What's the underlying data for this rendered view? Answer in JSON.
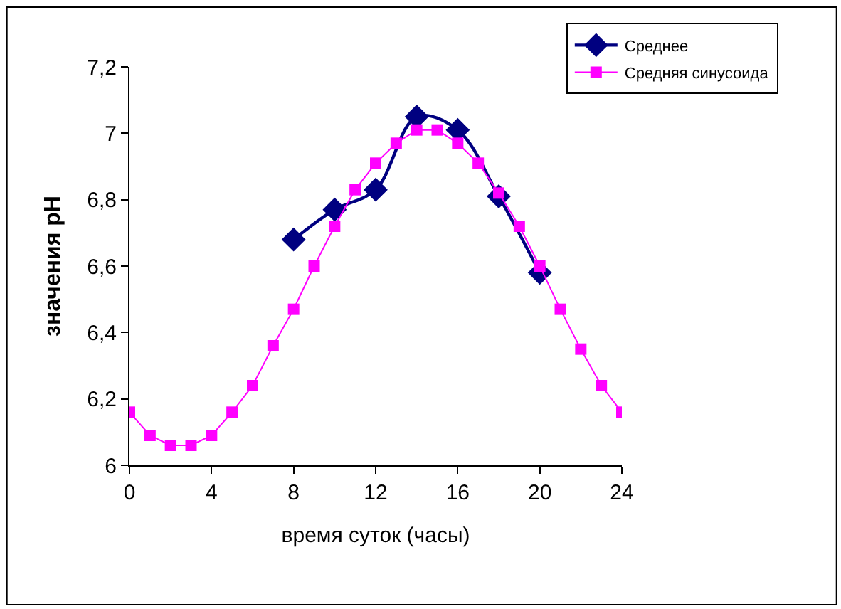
{
  "chart_data": {
    "type": "line",
    "xlabel": "время суток (часы)",
    "ylabel": "значения pH",
    "xlim": [
      0,
      24
    ],
    "xticks": [
      0,
      4,
      8,
      12,
      16,
      20,
      24
    ],
    "ylim": [
      6,
      7.2
    ],
    "yticks": [
      {
        "value": 6,
        "label": "6"
      },
      {
        "value": 6.2,
        "label": "6,2"
      },
      {
        "value": 6.4,
        "label": "6,4"
      },
      {
        "value": 6.6,
        "label": "6,6"
      },
      {
        "value": 6.8,
        "label": "6,8"
      },
      {
        "value": 7,
        "label": "7"
      },
      {
        "value": 7.2,
        "label": "7,2"
      }
    ],
    "legend": "top right",
    "series": [
      {
        "name": "Среднее",
        "color": "#000080",
        "marker": "diamond",
        "x": [
          8,
          10,
          12,
          14,
          16,
          18,
          20
        ],
        "values": [
          6.68,
          6.77,
          6.83,
          7.05,
          7.01,
          6.81,
          6.58
        ]
      },
      {
        "name": "Средняя синусоида",
        "color": "#ff00ff",
        "marker": "square",
        "x": [
          0,
          1,
          2,
          3,
          4,
          5,
          6,
          7,
          8,
          9,
          10,
          11,
          12,
          13,
          14,
          15,
          16,
          17,
          18,
          19,
          20,
          21,
          22,
          23,
          24
        ],
        "values": [
          6.16,
          6.09,
          6.06,
          6.06,
          6.09,
          6.16,
          6.24,
          6.36,
          6.47,
          6.6,
          6.72,
          6.83,
          6.91,
          6.97,
          7.01,
          7.01,
          6.97,
          6.91,
          6.82,
          6.72,
          6.6,
          6.47,
          6.35,
          6.24,
          6.16
        ]
      }
    ]
  }
}
